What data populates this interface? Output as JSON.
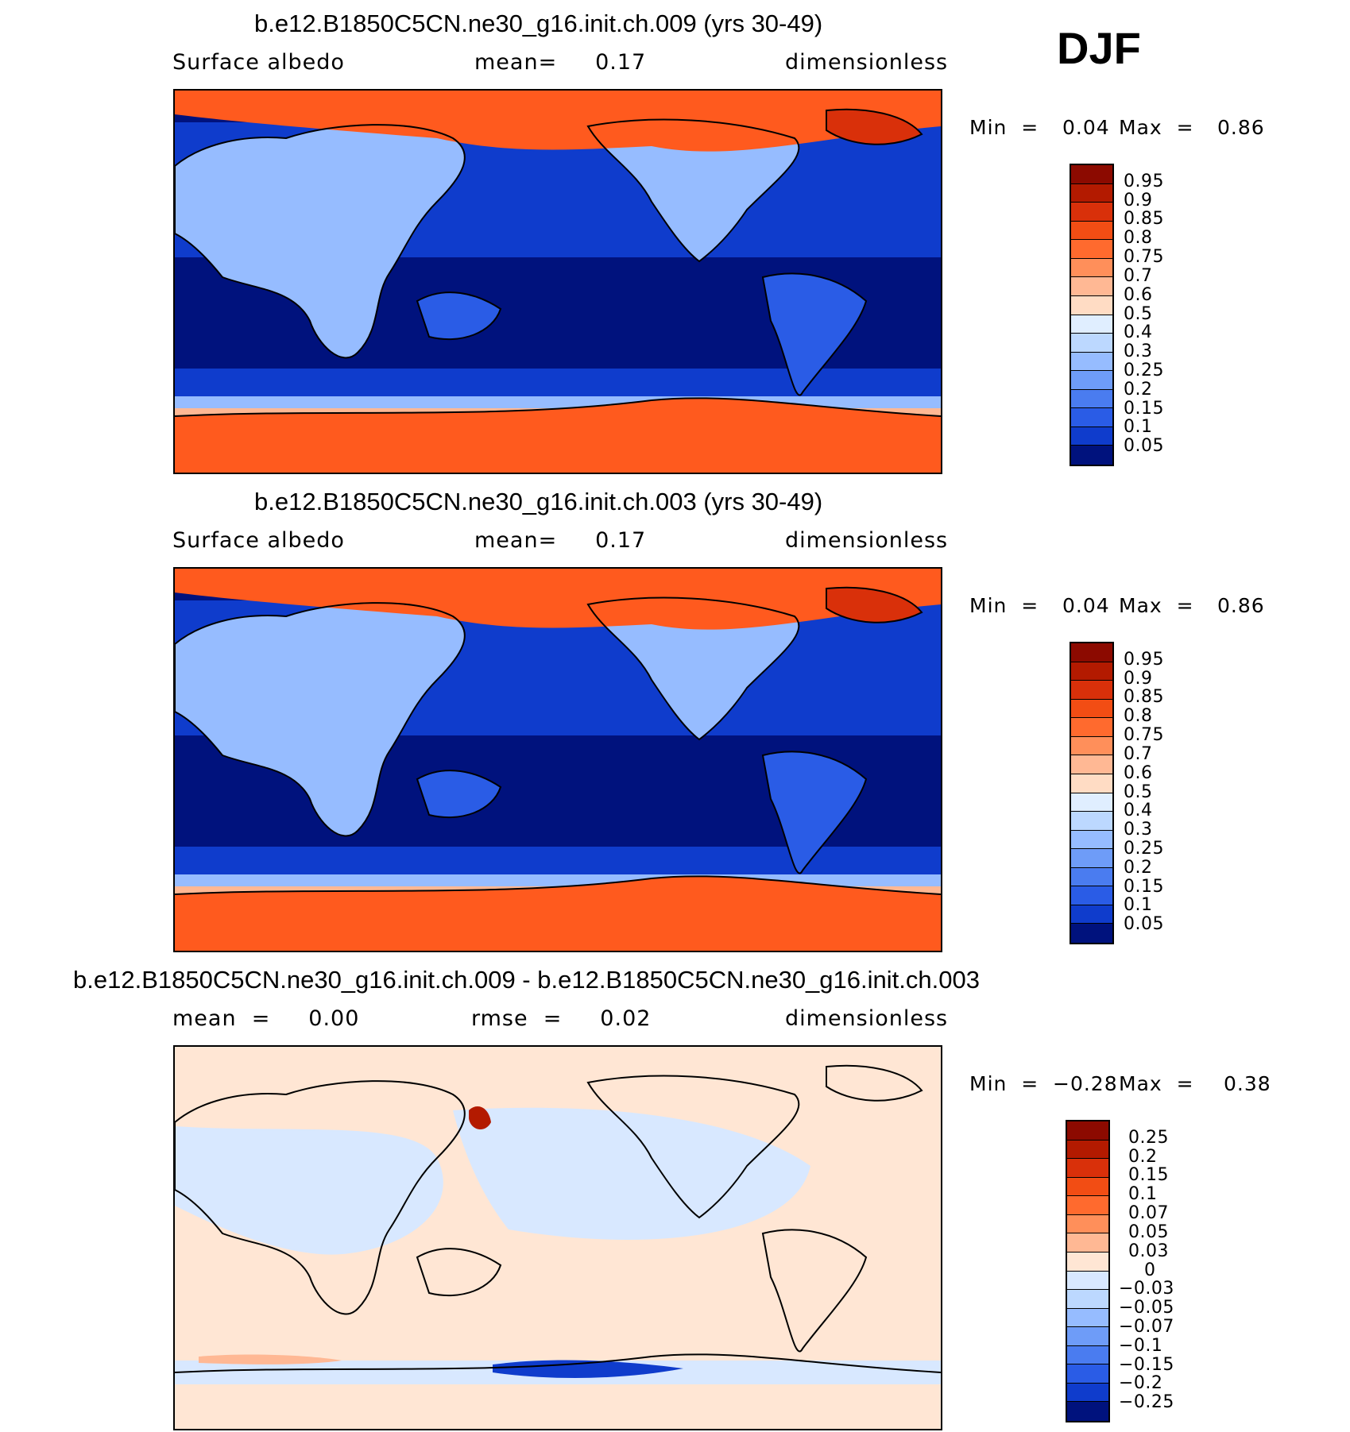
{
  "season": "DJF",
  "panels": [
    {
      "title": "b.e12.B1850C5CN.ne30_g16.init.ch.009 (yrs 30-49)",
      "sub_left": "Surface  albedo",
      "sub_mid": "mean=     0.17",
      "sub_right": "dimensionless",
      "min_label": "Min  =",
      "min_value": "0.04",
      "max_label": "Max  =",
      "max_value": "0.86",
      "kind": "albedo"
    },
    {
      "title": "b.e12.B1850C5CN.ne30_g16.init.ch.003 (yrs 30-49)",
      "sub_left": "Surface  albedo",
      "sub_mid": "mean=     0.17",
      "sub_right": "dimensionless",
      "min_label": "Min  =",
      "min_value": "0.04",
      "max_label": "Max  =",
      "max_value": "0.86",
      "kind": "albedo"
    },
    {
      "title": "b.e12.B1850C5CN.ne30_g16.init.ch.009 - b.e12.B1850C5CN.ne30_g16.init.ch.003",
      "sub_left": "mean  =     0.00",
      "sub_mid": "rmse  =     0.02",
      "sub_right": "dimensionless",
      "min_label": "Min  =",
      "min_value": "−0.28",
      "max_label": "Max  =",
      "max_value": "0.38",
      "kind": "diff"
    }
  ],
  "colorbars": {
    "albedo": {
      "labels": [
        "0.95",
        "0.9",
        "0.85",
        "0.8",
        "0.75",
        "0.7",
        "0.6",
        "0.5",
        "0.4",
        "0.3",
        "0.25",
        "0.2",
        "0.15",
        "0.1",
        "0.05"
      ],
      "colors": [
        "#8c0a00",
        "#b31a00",
        "#d9300a",
        "#f24d14",
        "#ff6a2e",
        "#ff8f5a",
        "#ffb894",
        "#ffdcc4",
        "#e0eeff",
        "#bcd8ff",
        "#96bcff",
        "#6e9cf8",
        "#4a7cf0",
        "#2a5ce6",
        "#0f3ccc",
        "#00127d"
      ]
    },
    "diff": {
      "labels": [
        "0.25",
        "0.2",
        "0.15",
        "0.1",
        "0.07",
        "0.05",
        "0.03",
        "0",
        "−0.03",
        "−0.05",
        "−0.07",
        "−0.1",
        "−0.15",
        "−0.2",
        "−0.25"
      ],
      "colors": [
        "#8c0a00",
        "#b31a00",
        "#d9300a",
        "#f24d14",
        "#ff6a2e",
        "#ff8f5a",
        "#ffb894",
        "#ffe6d4",
        "#d8e8ff",
        "#bcd8ff",
        "#96bcff",
        "#6e9cf8",
        "#4a7cf0",
        "#2a5ce6",
        "#0f3ccc",
        "#00127d"
      ]
    }
  },
  "map_colors": {
    "ocean_deep": "#00127d",
    "ocean_mid": "#0f3ccc",
    "land_low": "#2a5ce6",
    "land_mid": "#96bcff",
    "ice_light": "#ffb894",
    "ice": "#ff5a1e",
    "ice_dark": "#d9300a",
    "diff_pos": "#ffe6d4",
    "diff_neg": "#d8e8ff",
    "diff_strong_pos": "#b31a00",
    "diff_strong_neg": "#0f3ccc"
  }
}
